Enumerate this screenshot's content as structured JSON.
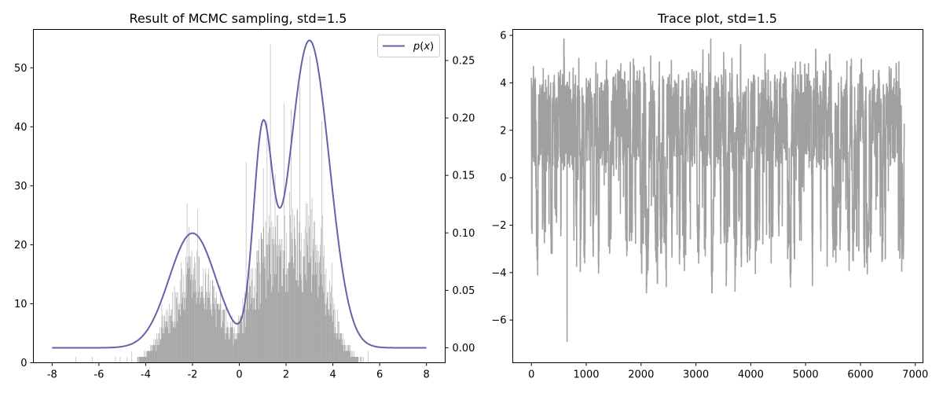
{
  "chart_data": [
    {
      "type": "bar",
      "title": "Result of MCMC sampling, std=1.5",
      "xlim": [
        -8.8,
        8.8
      ],
      "xticks": [
        "-8",
        "-6",
        "-4",
        "-2",
        "0",
        "2",
        "4",
        "6",
        "8"
      ],
      "ylim": [
        0,
        56.5
      ],
      "yticks": [
        "0",
        "10",
        "20",
        "30",
        "40",
        "50"
      ],
      "y2lim": [
        -0.013,
        0.277
      ],
      "y2ticks": [
        "0.00",
        "0.05",
        "0.10",
        "0.15",
        "0.20",
        "0.25"
      ],
      "histogram": {
        "color": "#a0a0a0",
        "bin_width": 0.02,
        "profile_x": [
          -8,
          -4.5,
          -4,
          -3.5,
          -3,
          -2.5,
          -2,
          -1.5,
          -1,
          -0.5,
          -0.2,
          0,
          0.5,
          1,
          1.5,
          2,
          2.5,
          3,
          3.5,
          4,
          4.5,
          5,
          5.5,
          6,
          8
        ],
        "profile_y": [
          0,
          0,
          1.5,
          4,
          8,
          13,
          15.5,
          14,
          10,
          5.5,
          4.5,
          7,
          13,
          19,
          20,
          20,
          21.5,
          22,
          18,
          9,
          3,
          0.8,
          0.3,
          0,
          0
        ],
        "isolated_bars": [
          [
            -7,
            1
          ],
          [
            -6.3,
            1
          ],
          [
            -5.3,
            1
          ],
          [
            -5.1,
            1
          ],
          [
            -4.8,
            1
          ],
          [
            -4.6,
            2
          ],
          [
            5.3,
            1
          ],
          [
            5.5,
            2
          ]
        ],
        "spikes": [
          [
            1.32,
            54
          ],
          [
            3.02,
            52
          ],
          [
            -1.78,
            26
          ],
          [
            1.18,
            41
          ],
          [
            2.58,
            47
          ],
          [
            3.52,
            41
          ],
          [
            0.28,
            34
          ],
          [
            -2.24,
            27
          ],
          [
            2.2,
            43
          ],
          [
            1.9,
            44
          ]
        ]
      },
      "series": [
        {
          "name": "$p(x)$",
          "legend_label": "p(x)",
          "color": "#6264a7",
          "axis": "right",
          "components": [
            {
              "weight": 0.25,
              "mean": -2.0,
              "std": 1.0
            },
            {
              "weight": 0.18,
              "mean": 1.0,
              "std": 0.4
            },
            {
              "weight": 0.57,
              "mean": 3.0,
              "std": 0.85
            }
          ],
          "x_range": [
            -8,
            8
          ]
        }
      ],
      "legend": "upper right"
    },
    {
      "type": "line",
      "title": "Trace plot, std=1.5",
      "xlim": [
        -340,
        7140
      ],
      "xticks": [
        "0",
        "1000",
        "2000",
        "3000",
        "4000",
        "5000",
        "6000",
        "7000"
      ],
      "ylim": [
        -7.8,
        6.25
      ],
      "yticks": [
        "−6",
        "−4",
        "−2",
        "0",
        "2",
        "4",
        "6"
      ],
      "n_samples": 6800,
      "color": "#a0a0a0",
      "min_sample": [
        650,
        -6.9
      ],
      "max_sample": [
        3270,
        5.85
      ]
    }
  ]
}
